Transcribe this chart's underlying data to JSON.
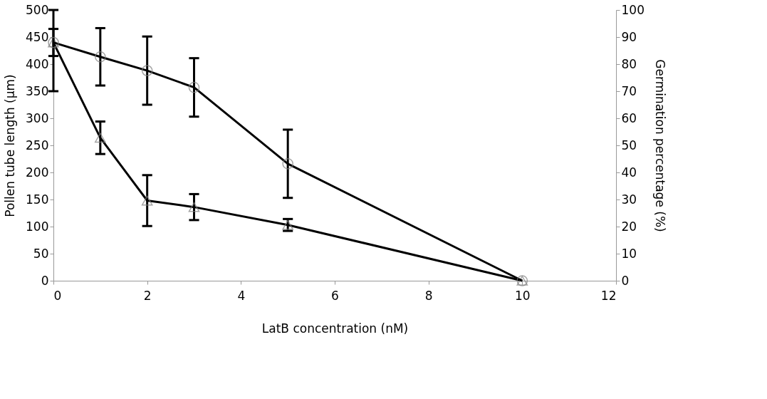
{
  "chart_data": {
    "type": "line",
    "xlabel": "LatB concentration (nM)",
    "ylabel": "Pollen tube length (µm)",
    "y2label": "Germination percentage (%)",
    "x": [
      0,
      1,
      2,
      3,
      5,
      10
    ],
    "xlim": [
      0,
      12
    ],
    "xticks": [
      0,
      2,
      4,
      6,
      8,
      10,
      12
    ],
    "ylim": [
      0,
      500
    ],
    "yticks": [
      0,
      50,
      100,
      150,
      200,
      250,
      300,
      350,
      400,
      450,
      500
    ],
    "y2lim": [
      0,
      100
    ],
    "y2ticks": [
      0,
      10,
      20,
      30,
      40,
      50,
      60,
      70,
      80,
      90,
      100
    ],
    "grid": false,
    "line_style": "solid",
    "series": [
      {
        "color": "#000000",
        "marker": "triangle",
        "values": [
          440,
          264,
          148,
          136,
          103,
          0
        ],
        "errors": [
          25,
          30,
          47,
          24,
          11,
          null
        ]
      },
      {
        "color": "#000000",
        "marker": "circle",
        "axis": "y2",
        "values": [
          88,
          82.7,
          77.6,
          71.4,
          43.2,
          0
        ],
        "errors": [
          [
            70,
            100
          ],
          10.6,
          12.6,
          10.8,
          12.6,
          null
        ]
      }
    ]
  }
}
